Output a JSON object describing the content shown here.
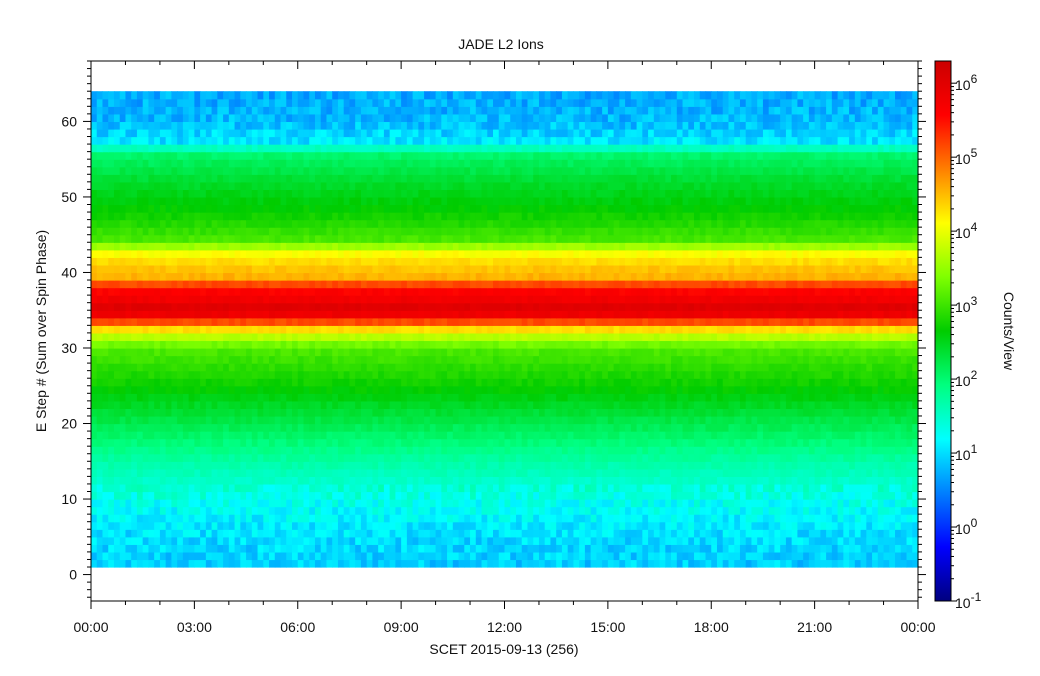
{
  "chart_data": {
    "type": "heatmap",
    "title": "JADE L2 Ions",
    "xlabel": "SCET 2015-09-13 (256)",
    "ylabel": "E Step # (Sum over Spin Phase)",
    "colorbar_label": "Counts/View",
    "x_ticks": [
      "00:00",
      "03:00",
      "06:00",
      "09:00",
      "12:00",
      "15:00",
      "18:00",
      "21:00",
      "00:00"
    ],
    "xlim_hours": [
      0,
      24
    ],
    "y_ticks": [
      0,
      10,
      20,
      30,
      40,
      50,
      60
    ],
    "ylim": [
      -3.5,
      68
    ],
    "data_y_range": [
      1,
      64
    ],
    "colorbar_ticks": [
      {
        "base": "10",
        "exp": "-1"
      },
      {
        "base": "10",
        "exp": "0"
      },
      {
        "base": "10",
        "exp": "1"
      },
      {
        "base": "10",
        "exp": "2"
      },
      {
        "base": "10",
        "exp": "3"
      },
      {
        "base": "10",
        "exp": "4"
      },
      {
        "base": "10",
        "exp": "5"
      },
      {
        "base": "10",
        "exp": "6"
      }
    ],
    "color_scale_log10_range": [
      -1,
      6.3
    ],
    "log_scale_colorbar": true,
    "colormap": [
      "#00007f",
      "#0000ff",
      "#007fff",
      "#00ffff",
      "#00ff7f",
      "#00cc00",
      "#7fff00",
      "#ffff00",
      "#ff7f00",
      "#ff0000",
      "#cc0000"
    ],
    "energy_profile_log10_counts": [
      {
        "step": 1,
        "value": 0.9
      },
      {
        "step": 5,
        "value": 1.0
      },
      {
        "step": 10,
        "value": 1.3
      },
      {
        "step": 15,
        "value": 1.7
      },
      {
        "step": 20,
        "value": 2.2
      },
      {
        "step": 25,
        "value": 2.7
      },
      {
        "step": 30,
        "value": 3.1
      },
      {
        "step": 32,
        "value": 3.9
      },
      {
        "step": 33,
        "value": 4.7
      },
      {
        "step": 34,
        "value": 5.6
      },
      {
        "step": 35,
        "value": 6.0
      },
      {
        "step": 36,
        "value": 6.0
      },
      {
        "step": 37,
        "value": 5.5
      },
      {
        "step": 38,
        "value": 5.7
      },
      {
        "step": 39,
        "value": 4.6
      },
      {
        "step": 41,
        "value": 4.4
      },
      {
        "step": 43,
        "value": 4.0
      },
      {
        "step": 44,
        "value": 3.1
      },
      {
        "step": 48,
        "value": 2.7
      },
      {
        "step": 52,
        "value": 2.4
      },
      {
        "step": 56,
        "value": 2.0
      },
      {
        "step": 57,
        "value": 1.1
      },
      {
        "step": 60,
        "value": 0.8
      },
      {
        "step": 64,
        "value": 0.7
      }
    ]
  }
}
